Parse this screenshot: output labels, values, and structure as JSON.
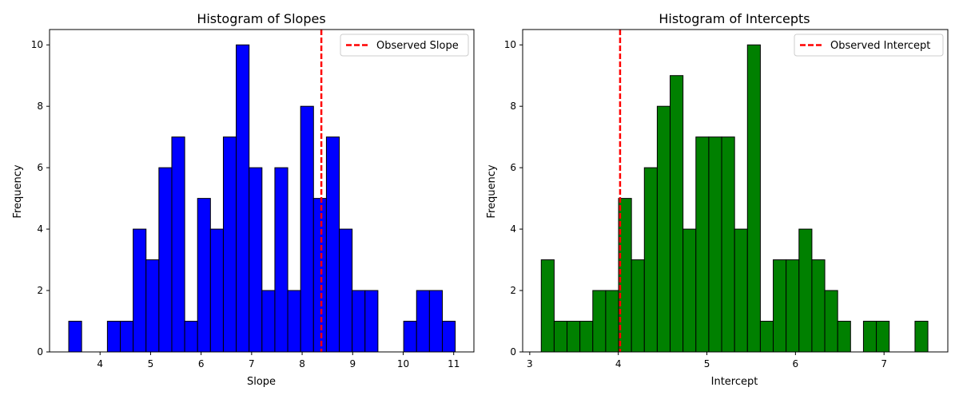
{
  "chart_data": [
    {
      "type": "bar",
      "title": "Histogram of Slopes",
      "xlabel": "Slope",
      "ylabel": "Frequency",
      "xlim": [
        3.0,
        11.4
      ],
      "ylim": [
        0,
        10.5
      ],
      "xticks": [
        4,
        5,
        6,
        7,
        8,
        9,
        10,
        11
      ],
      "yticks": [
        0,
        2,
        4,
        6,
        8,
        10
      ],
      "bin_start": 3.38,
      "bin_width": 0.255,
      "counts": [
        1,
        0,
        0,
        1,
        1,
        4,
        3,
        6,
        7,
        1,
        5,
        4,
        7,
        10,
        6,
        2,
        6,
        2,
        8,
        5,
        7,
        4,
        2,
        2,
        0,
        0,
        1,
        2,
        2,
        1
      ],
      "bar_color": "#0000ff",
      "edge_color": "#000000",
      "grid": false,
      "legend_position": "upper-right",
      "reference_line": {
        "label": "Observed Slope",
        "x": 8.38,
        "color": "#ff0000",
        "style": "dashed"
      }
    },
    {
      "type": "bar",
      "title": "Histogram of Intercepts",
      "xlabel": "Intercept",
      "ylabel": "Frequency",
      "xlim": [
        2.92,
        7.72
      ],
      "ylim": [
        0,
        10.5
      ],
      "xticks": [
        3,
        4,
        5,
        6,
        7
      ],
      "yticks": [
        0,
        2,
        4,
        6,
        8,
        10
      ],
      "bin_start": 3.13,
      "bin_width": 0.1455,
      "counts": [
        3,
        1,
        1,
        1,
        2,
        2,
        5,
        3,
        6,
        8,
        9,
        4,
        7,
        7,
        7,
        4,
        10,
        1,
        3,
        3,
        4,
        3,
        2,
        1,
        0,
        1,
        1,
        0,
        0,
        1
      ],
      "bar_color": "#008000",
      "edge_color": "#000000",
      "grid": false,
      "legend_position": "upper-right",
      "reference_line": {
        "label": "Observed Intercept",
        "x": 4.02,
        "color": "#ff0000",
        "style": "dashed"
      }
    }
  ]
}
